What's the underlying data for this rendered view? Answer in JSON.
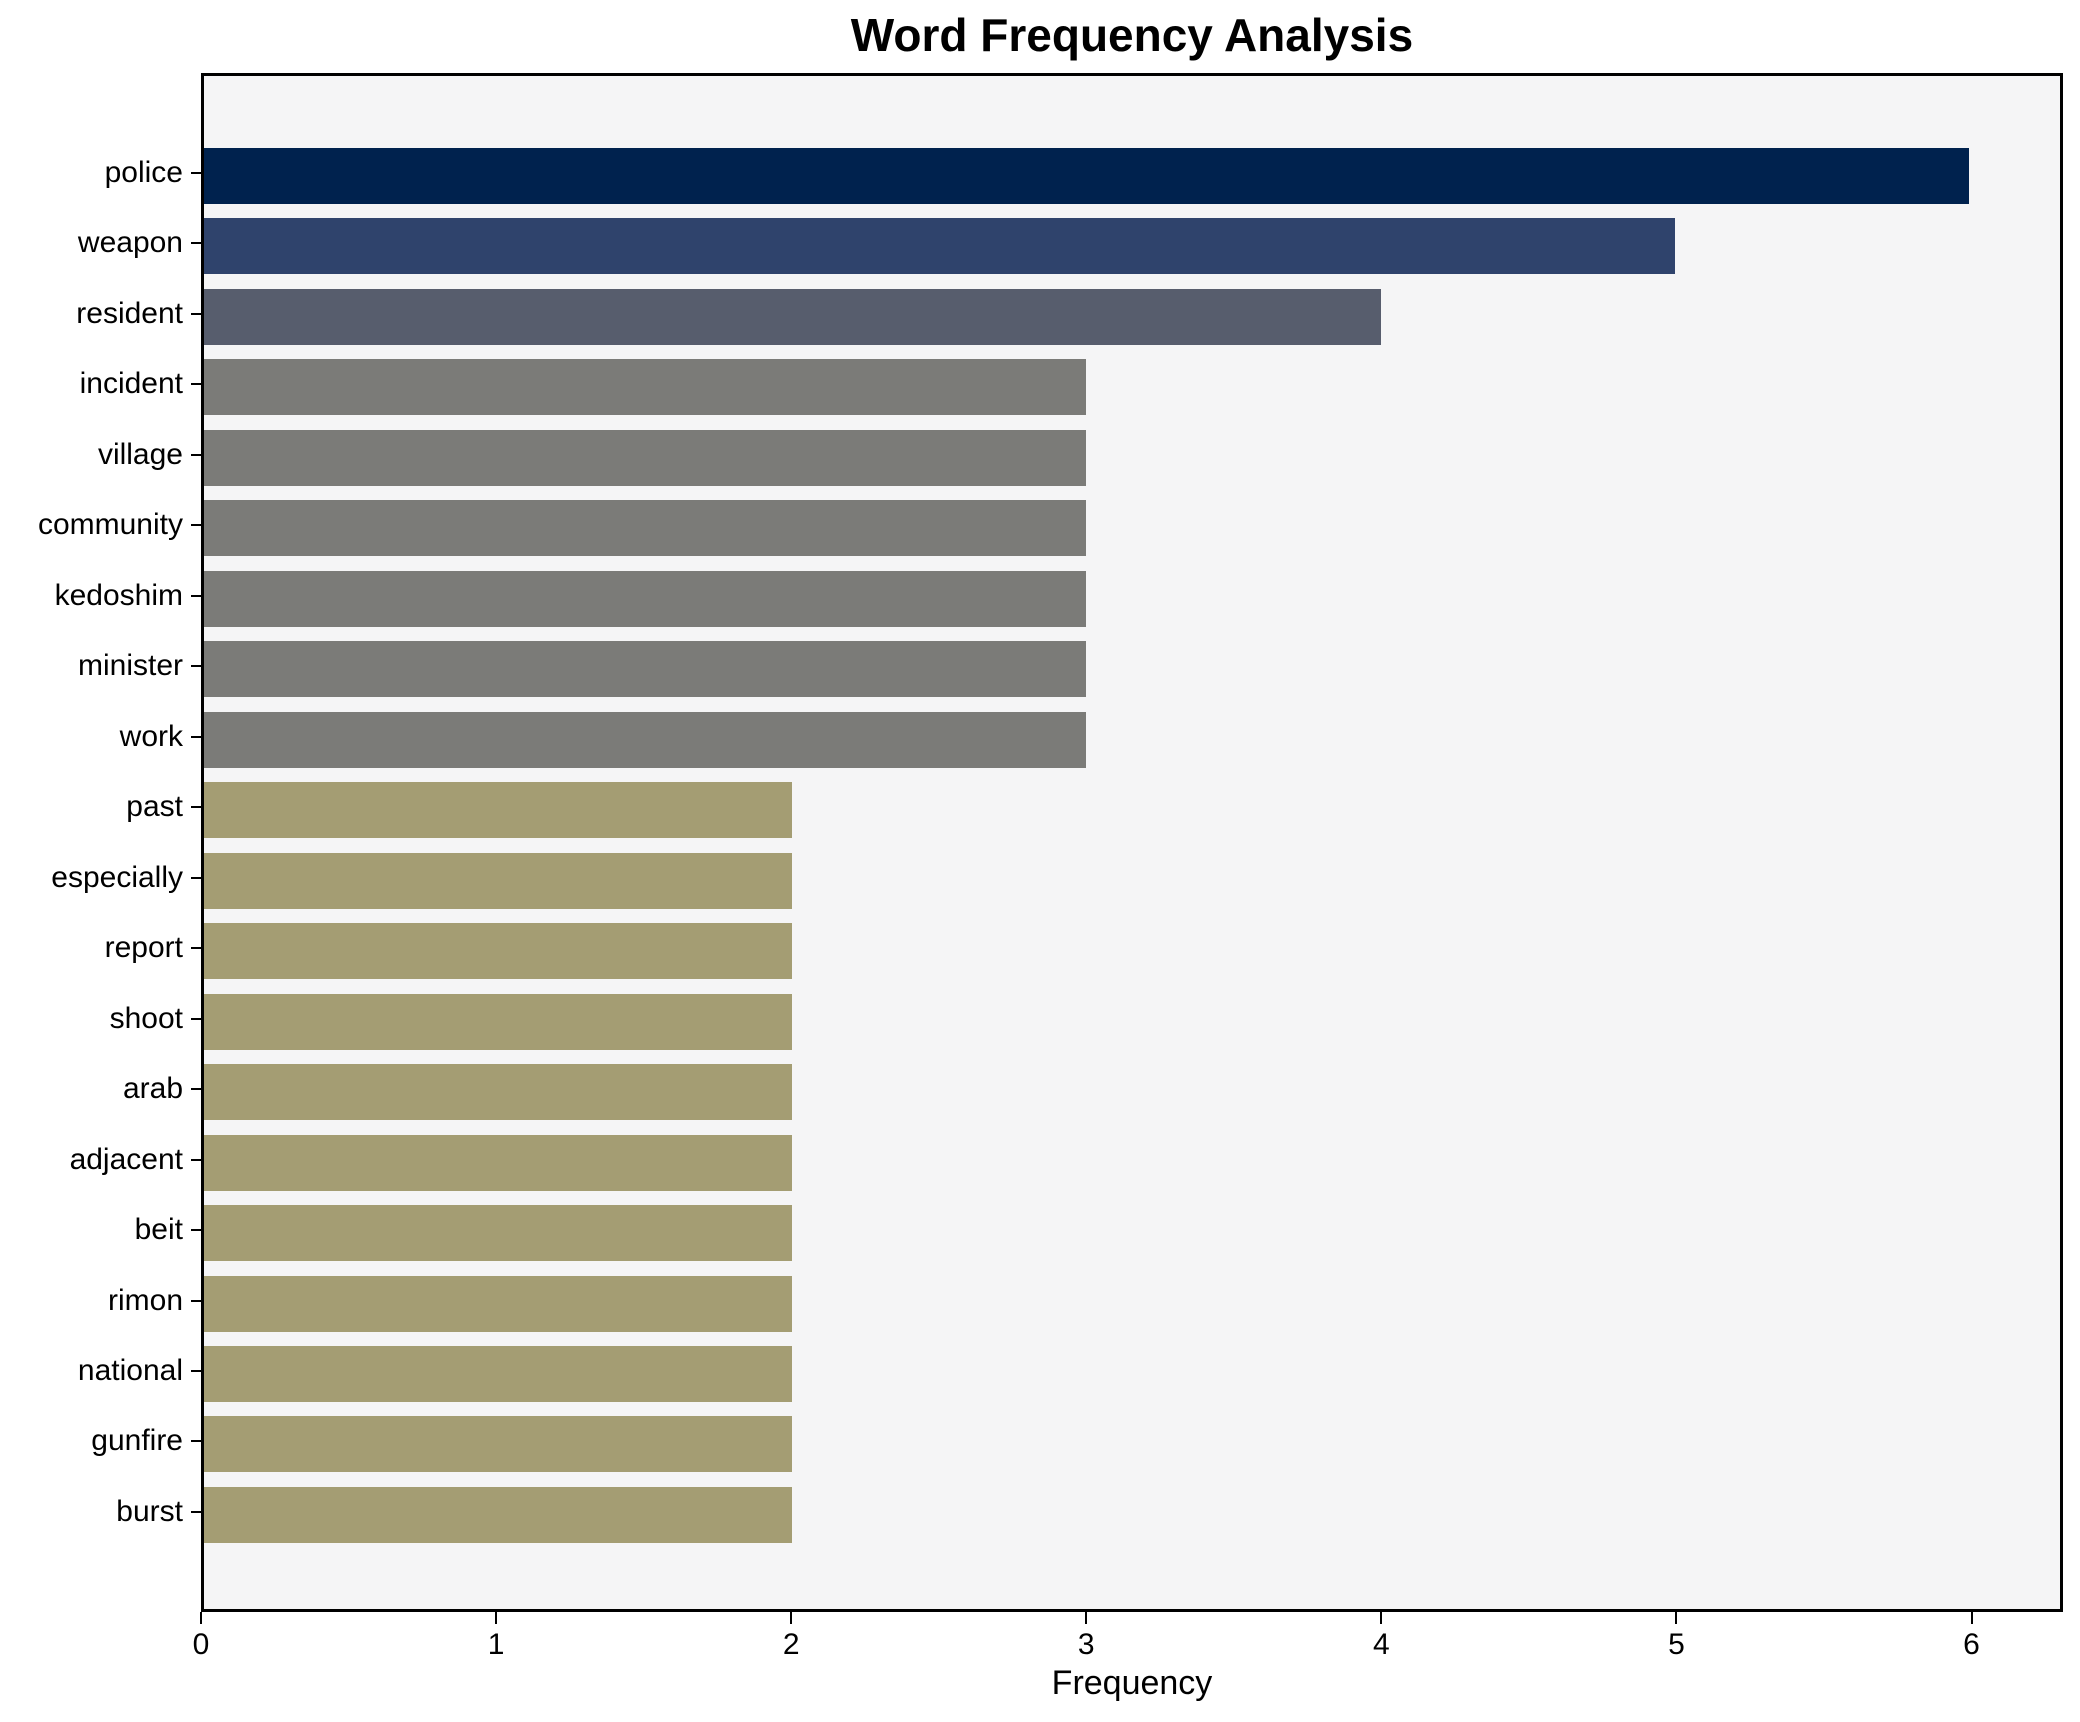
{
  "figure": {
    "background": "#ffffff"
  },
  "chart_data": {
    "type": "bar",
    "orientation": "horizontal",
    "title": "Word Frequency Analysis",
    "xlabel": "Frequency",
    "ylabel": "",
    "categories": [
      "police",
      "weapon",
      "resident",
      "incident",
      "village",
      "community",
      "kedoshim",
      "minister",
      "work",
      "past",
      "especially",
      "report",
      "shoot",
      "arab",
      "adjacent",
      "beit",
      "rimon",
      "national",
      "gunfire",
      "burst"
    ],
    "values": [
      6,
      5,
      4,
      3,
      3,
      3,
      3,
      3,
      3,
      2,
      2,
      2,
      2,
      2,
      2,
      2,
      2,
      2,
      2,
      2
    ],
    "x_ticks": [
      "0",
      "1",
      "2",
      "3",
      "4",
      "5",
      "6"
    ],
    "xlim": [
      0,
      6.31
    ],
    "grid": false,
    "legend_position": "none",
    "plot_background": "#f5f5f6",
    "axis_color": "#000000",
    "value_colors": {
      "6": "#00224e",
      "5": "#2f436c",
      "4": "#575d6d",
      "3": "#7b7b78",
      "2": "#a49d73"
    }
  }
}
